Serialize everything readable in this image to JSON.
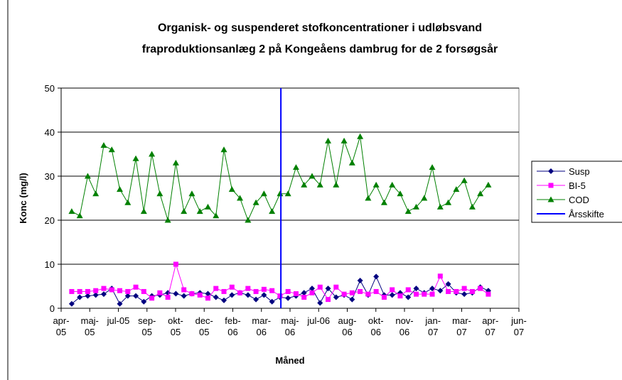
{
  "chart_data": {
    "type": "line",
    "title": "Organisk- og suspenderet stofkoncentrationer i udløbsvand fraproduktionsanlæg 2 på Kongeåens dambrug for de 2 forsøgsår",
    "x_label": "Måned",
    "y_label": "Konc (mg/l)",
    "xlim": [
      0,
      16
    ],
    "xticks": [
      {
        "value": 0,
        "label": "apr-05"
      },
      {
        "value": 1,
        "label": "maj-05"
      },
      {
        "value": 2,
        "label": "jul-05"
      },
      {
        "value": 3,
        "label": "sep-05"
      },
      {
        "value": 4,
        "label": "okt-05"
      },
      {
        "value": 5,
        "label": "dec-05"
      },
      {
        "value": 6,
        "label": "feb-06"
      },
      {
        "value": 7,
        "label": "mar-06"
      },
      {
        "value": 8,
        "label": "maj-06"
      },
      {
        "value": 9,
        "label": "jul-06"
      },
      {
        "value": 10,
        "label": "aug-06"
      },
      {
        "value": 11,
        "label": "okt-06"
      },
      {
        "value": 12,
        "label": "nov-06"
      },
      {
        "value": 13,
        "label": "jan-07"
      },
      {
        "value": 14,
        "label": "mar-07"
      },
      {
        "value": 15,
        "label": "apr-07"
      },
      {
        "value": 16,
        "label": "jun-07"
      }
    ],
    "ylim": [
      0,
      50
    ],
    "yticks": [
      0,
      10,
      20,
      30,
      40,
      50
    ],
    "grid": true,
    "x": [
      0.37,
      0.65,
      0.93,
      1.21,
      1.49,
      1.77,
      2.05,
      2.33,
      2.61,
      2.89,
      3.17,
      3.45,
      3.73,
      4.01,
      4.29,
      4.57,
      4.85,
      5.13,
      5.41,
      5.69,
      5.97,
      6.25,
      6.53,
      6.81,
      7.09,
      7.37,
      7.65,
      7.93,
      8.21,
      8.49,
      8.77,
      9.05,
      9.33,
      9.61,
      9.89,
      10.17,
      10.45,
      10.73,
      11.01,
      11.29,
      11.57,
      11.85,
      12.13,
      12.41,
      12.69,
      12.97,
      13.25,
      13.53,
      13.81,
      14.09,
      14.37,
      14.65,
      14.93
    ],
    "series": [
      {
        "name": "Susp",
        "color": "#000080",
        "marker": "diamond",
        "values": [
          1,
          2.5,
          2.8,
          3,
          3.2,
          4.5,
          1,
          2.8,
          2.8,
          1.5,
          2.8,
          3,
          3.5,
          3.3,
          2.8,
          3.3,
          3.5,
          3.3,
          2.5,
          1.8,
          3,
          3.5,
          3,
          2,
          3,
          1.5,
          2.5,
          2.3,
          2.8,
          3.5,
          4.5,
          1.2,
          4.5,
          2.5,
          3,
          2,
          6.3,
          3,
          7.2,
          3,
          3,
          3.5,
          2.5,
          4.5,
          3.5,
          4.5,
          4,
          5.5,
          3.5,
          3.2,
          3.5,
          4.8,
          4
        ]
      },
      {
        "name": "BI-5",
        "color": "#ff00ff",
        "marker": "square",
        "values": [
          3.8,
          3.8,
          3.8,
          4,
          4.5,
          4.2,
          4,
          3.8,
          4.8,
          3.8,
          2.3,
          3.5,
          2.5,
          10,
          4.2,
          3.3,
          3,
          2.3,
          4.5,
          3.8,
          4.8,
          3.5,
          4.5,
          3.8,
          4.3,
          4,
          2.8,
          3.8,
          3.3,
          2.5,
          3.5,
          4.8,
          2,
          4.8,
          3.2,
          3.5,
          3.8,
          3.2,
          3.8,
          2.5,
          4.2,
          2.8,
          4.2,
          3.2,
          3.2,
          3.2,
          7.3,
          3.8,
          3.8,
          4.5,
          3.8,
          4.5,
          3.2
        ]
      },
      {
        "name": "COD",
        "color": "#008000",
        "marker": "triangle",
        "values": [
          22,
          21,
          30,
          26,
          37,
          36,
          27,
          24,
          34,
          22,
          35,
          26,
          20,
          33,
          22,
          26,
          22,
          23,
          21,
          36,
          27,
          25,
          20,
          24,
          26,
          22,
          26,
          26,
          32,
          28,
          30,
          28,
          38,
          28,
          38,
          33,
          39,
          25,
          28,
          24,
          28,
          26,
          22,
          23,
          25,
          32,
          23,
          24,
          27,
          29,
          23,
          26,
          28
        ]
      },
      {
        "name": "Årsskifte",
        "color": "#0000ff",
        "marker": "none",
        "x": [
          7.68,
          7.68
        ],
        "values": [
          0,
          50
        ]
      }
    ]
  }
}
